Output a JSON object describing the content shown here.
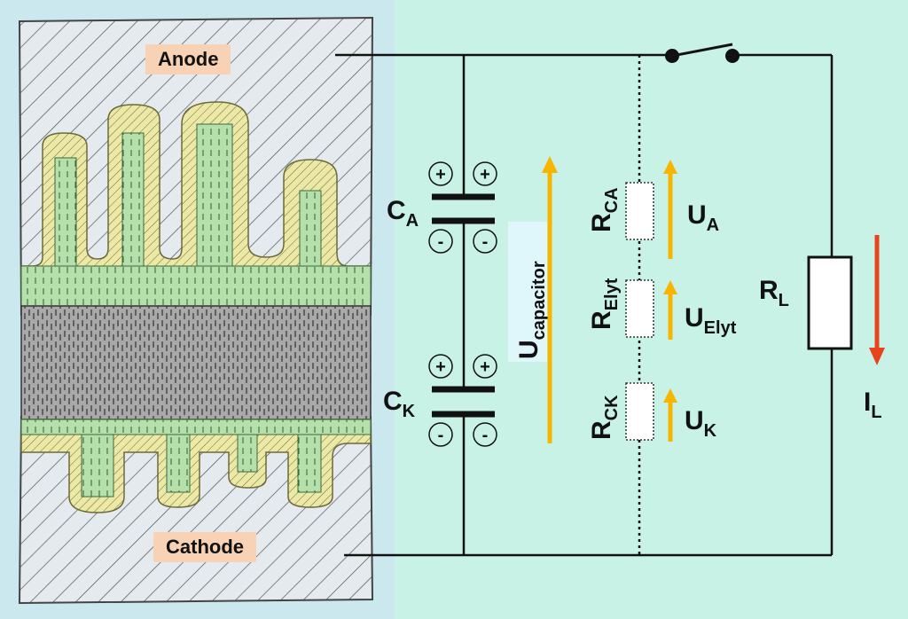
{
  "labels": {
    "anode": "Anode",
    "cathode": "Cathode",
    "ca_main": "C",
    "ca_sub": "A",
    "ck_main": "C",
    "ck_sub": "K",
    "ucap_main": "U",
    "ucap_sub": "capacitor",
    "rca_main": "R",
    "rca_sub": "CA",
    "relyt_main": "R",
    "relyt_sub": "Elyt",
    "rck_main": "R",
    "rck_sub": "CK",
    "ua_main": "U",
    "ua_sub": "A",
    "uelyt_main": "U",
    "uelyt_sub": "Elyt",
    "uk_main": "U",
    "uk_sub": "K",
    "rl_main": "R",
    "rl_sub": "L",
    "il_main": "I",
    "il_sub": "L",
    "plus": "+",
    "minus": "-"
  },
  "colors": {
    "background": "#c8f2e6",
    "left_panel": "#cbe8ee",
    "arrow_voltage": "#f7b500",
    "arrow_current": "#e8431c",
    "hatch_metal": "#d8e0e4",
    "oxide": "#e8e6a8",
    "electrolyte": "#b8e0b0",
    "separator": "#a8a8a8"
  }
}
